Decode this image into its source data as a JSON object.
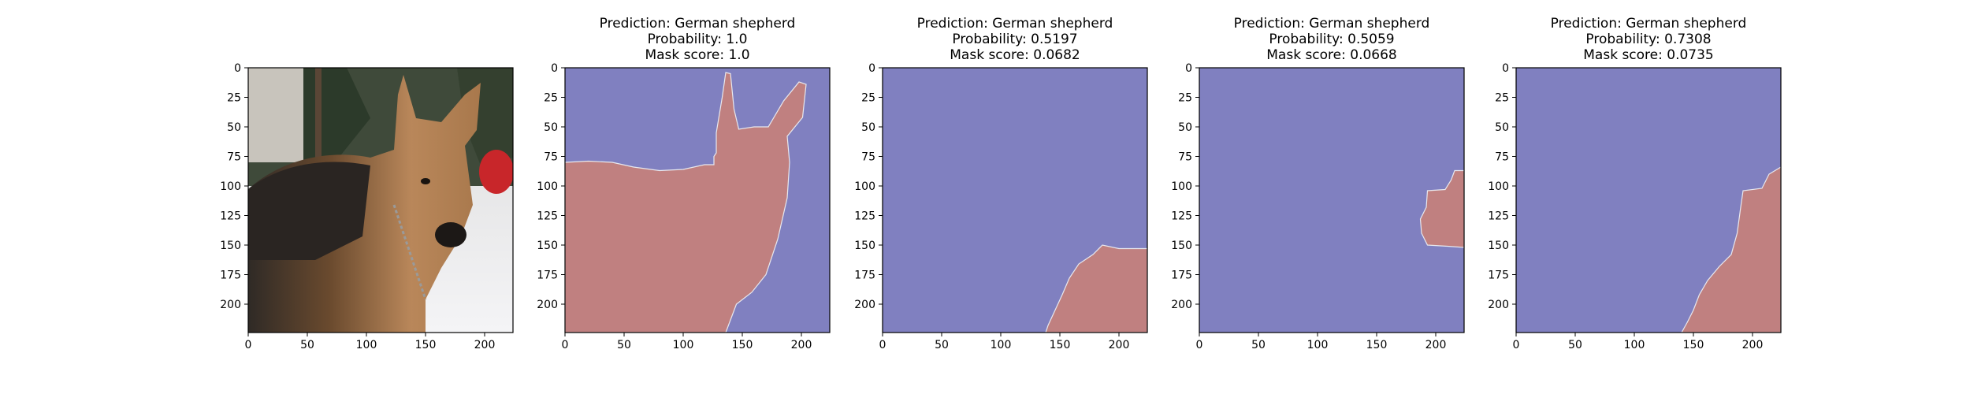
{
  "chart_data": [
    {
      "type": "image",
      "title_lines": [],
      "x_ticks": [
        "0",
        "50",
        "100",
        "150",
        "200"
      ],
      "y_ticks": [
        "0",
        "25",
        "50",
        "75",
        "100",
        "125",
        "150",
        "175",
        "200"
      ],
      "xlim": [
        0,
        224
      ],
      "ylim": [
        224,
        0
      ],
      "content": "photo"
    },
    {
      "type": "heatmap",
      "title_lines": [
        "Prediction: German shepherd",
        "Probability: 1.0",
        "Mask score: 1.0"
      ],
      "x_ticks": [
        "0",
        "50",
        "100",
        "150",
        "200"
      ],
      "y_ticks": [
        "0",
        "25",
        "50",
        "75",
        "100",
        "125",
        "150",
        "175",
        "200"
      ],
      "xlim": [
        0,
        224
      ],
      "ylim": [
        224,
        0
      ],
      "colors": {
        "background": "#8080c0",
        "mask": "#c08080"
      },
      "mask_polygon": [
        [
          0,
          80
        ],
        [
          20,
          79
        ],
        [
          40,
          80
        ],
        [
          58,
          84
        ],
        [
          80,
          87
        ],
        [
          100,
          86
        ],
        [
          118,
          82
        ],
        [
          126,
          82
        ],
        [
          126,
          75
        ],
        [
          128,
          72
        ],
        [
          128,
          55
        ],
        [
          133,
          25
        ],
        [
          136,
          4
        ],
        [
          140,
          5
        ],
        [
          143,
          35
        ],
        [
          147,
          52
        ],
        [
          160,
          50
        ],
        [
          172,
          50
        ],
        [
          185,
          28
        ],
        [
          198,
          12
        ],
        [
          204,
          14
        ],
        [
          201,
          42
        ],
        [
          188,
          58
        ],
        [
          190,
          80
        ],
        [
          188,
          110
        ],
        [
          180,
          145
        ],
        [
          170,
          175
        ],
        [
          158,
          190
        ],
        [
          145,
          200
        ],
        [
          136,
          224
        ],
        [
          0,
          224
        ]
      ]
    },
    {
      "type": "heatmap",
      "title_lines": [
        "Prediction: German shepherd",
        "Probability: 0.5197",
        "Mask score: 0.0682"
      ],
      "x_ticks": [
        "0",
        "50",
        "100",
        "150",
        "200"
      ],
      "y_ticks": [
        "0",
        "25",
        "50",
        "75",
        "100",
        "125",
        "150",
        "175",
        "200"
      ],
      "xlim": [
        0,
        224
      ],
      "ylim": [
        224,
        0
      ],
      "colors": {
        "background": "#8080c0",
        "mask": "#c08080"
      },
      "mask_polygon": [
        [
          224,
          153
        ],
        [
          200,
          153
        ],
        [
          186,
          150
        ],
        [
          178,
          158
        ],
        [
          166,
          166
        ],
        [
          158,
          178
        ],
        [
          152,
          192
        ],
        [
          146,
          205
        ],
        [
          140,
          218
        ],
        [
          138,
          224
        ],
        [
          224,
          224
        ]
      ]
    },
    {
      "type": "heatmap",
      "title_lines": [
        "Prediction: German shepherd",
        "Probability: 0.5059",
        "Mask score: 0.0668"
      ],
      "x_ticks": [
        "0",
        "50",
        "100",
        "150",
        "200"
      ],
      "y_ticks": [
        "0",
        "25",
        "50",
        "75",
        "100",
        "125",
        "150",
        "175",
        "200"
      ],
      "xlim": [
        0,
        224
      ],
      "ylim": [
        224,
        0
      ],
      "colors": {
        "background": "#8080c0",
        "mask": "#c08080"
      },
      "mask_polygon": [
        [
          224,
          87
        ],
        [
          216,
          87
        ],
        [
          213,
          95
        ],
        [
          208,
          103
        ],
        [
          193,
          104
        ],
        [
          192,
          118
        ],
        [
          187,
          128
        ],
        [
          188,
          140
        ],
        [
          193,
          150
        ],
        [
          210,
          151
        ],
        [
          224,
          152
        ]
      ]
    },
    {
      "type": "heatmap",
      "title_lines": [
        "Prediction: German shepherd",
        "Probability: 0.7308",
        "Mask score: 0.0735"
      ],
      "x_ticks": [
        "0",
        "50",
        "100",
        "150",
        "200"
      ],
      "y_ticks": [
        "0",
        "25",
        "50",
        "75",
        "100",
        "125",
        "150",
        "175",
        "200"
      ],
      "xlim": [
        0,
        224
      ],
      "ylim": [
        224,
        0
      ],
      "colors": {
        "background": "#8080c0",
        "mask": "#c08080"
      },
      "mask_polygon": [
        [
          224,
          84
        ],
        [
          214,
          90
        ],
        [
          208,
          102
        ],
        [
          192,
          104
        ],
        [
          190,
          118
        ],
        [
          187,
          140
        ],
        [
          182,
          158
        ],
        [
          172,
          168
        ],
        [
          162,
          180
        ],
        [
          155,
          192
        ],
        [
          150,
          205
        ],
        [
          145,
          215
        ],
        [
          140,
          224
        ],
        [
          224,
          224
        ]
      ]
    }
  ]
}
